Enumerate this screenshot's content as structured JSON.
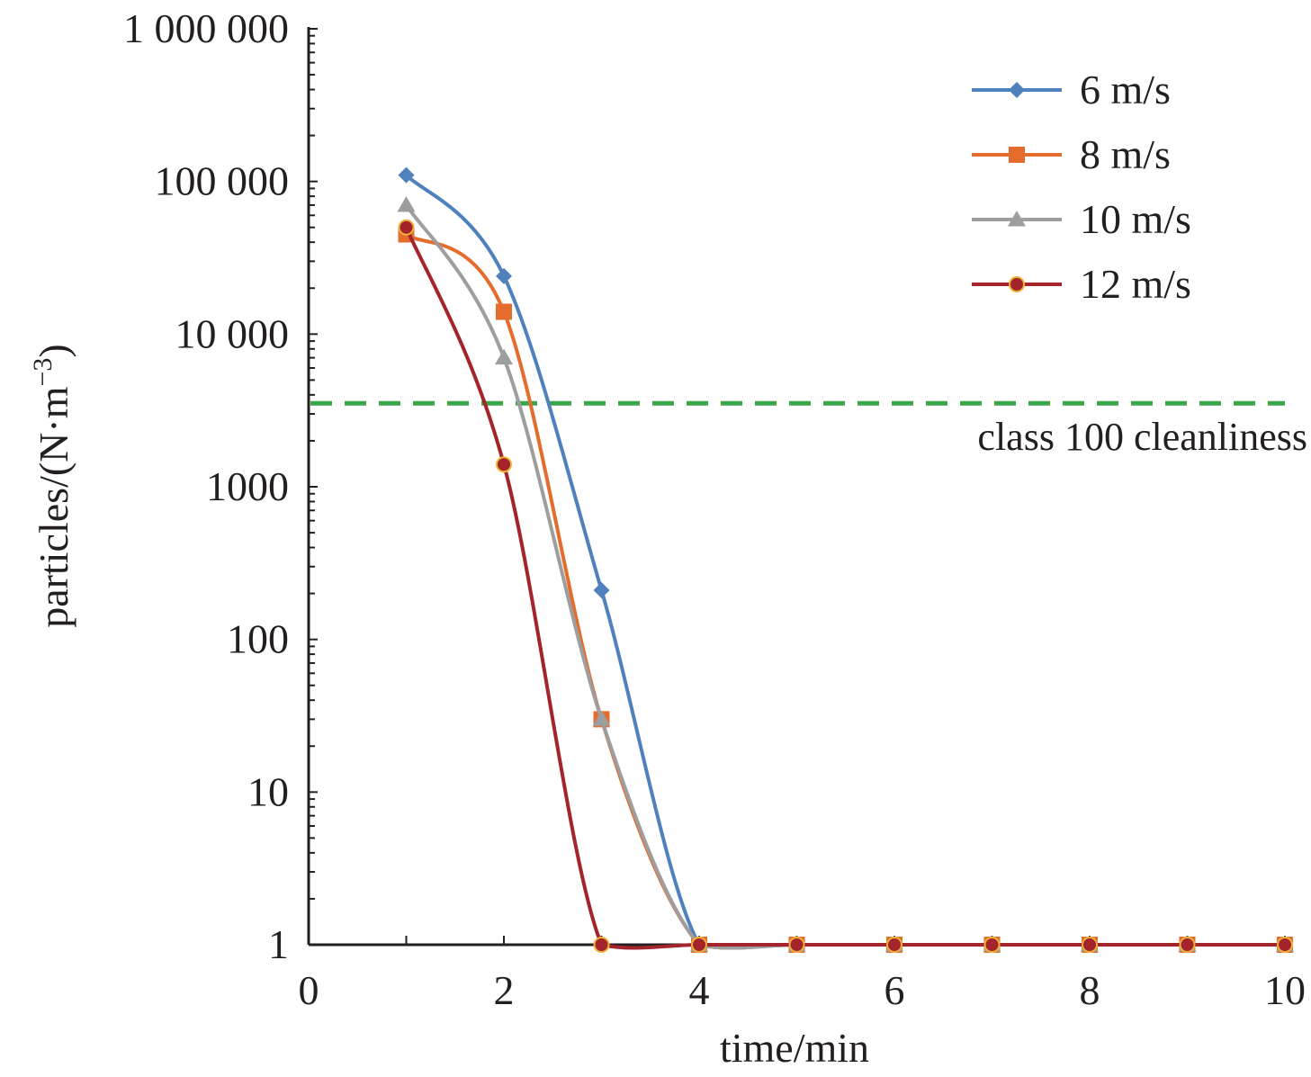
{
  "chart_data": {
    "type": "line",
    "title": "",
    "xlabel": "time/min",
    "ylabel_main": "particles/(N·m",
    "ylabel_sup": "−3",
    "ylabel_end": ")",
    "x_scale": "linear",
    "y_scale": "log",
    "xlim": [
      0,
      10
    ],
    "ylim": [
      1,
      1000000
    ],
    "x_ticks": [
      0,
      2,
      4,
      6,
      8,
      10
    ],
    "x_tick_labels": [
      "0",
      "2",
      "4",
      "6",
      "8",
      "10"
    ],
    "y_ticks": [
      1,
      10,
      100,
      1000,
      10000,
      100000,
      1000000
    ],
    "y_tick_labels": [
      "1",
      "10",
      "100",
      "1000",
      "10 000",
      "100 000",
      "1 000 000"
    ],
    "legend_position": "top-right",
    "reference_line": {
      "y": 3520,
      "label": "class 100 cleanliness",
      "color": "#3aa84a",
      "style": "dashed"
    },
    "series": [
      {
        "name": "6 m/s",
        "color": "#4f81bd",
        "marker": "diamond",
        "x": [
          1,
          2,
          3,
          4,
          5,
          6,
          7,
          8,
          9,
          10
        ],
        "y": [
          110000,
          24000,
          210,
          1,
          1,
          1,
          1,
          1,
          1,
          1
        ]
      },
      {
        "name": "8 m/s",
        "color": "#e46c2d",
        "marker": "square",
        "x": [
          1,
          2,
          3,
          4,
          5,
          6,
          7,
          8,
          9,
          10
        ],
        "y": [
          45000,
          14000,
          30,
          1,
          1,
          1,
          1,
          1,
          1,
          1
        ]
      },
      {
        "name": "10 m/s",
        "color": "#9e9e9e",
        "marker": "triangle",
        "x": [
          1,
          2,
          3,
          4,
          5,
          6,
          7,
          8,
          9,
          10
        ],
        "y": [
          70000,
          7000,
          30,
          1,
          1,
          1,
          1,
          1,
          1,
          1
        ]
      },
      {
        "name": "12 m/s",
        "color": "#a3242a",
        "marker": "circle",
        "x": [
          1,
          2,
          3,
          4,
          5,
          6,
          7,
          8,
          9,
          10
        ],
        "y": [
          50000,
          1400,
          1,
          1,
          1,
          1,
          1,
          1,
          1,
          1
        ]
      }
    ]
  }
}
